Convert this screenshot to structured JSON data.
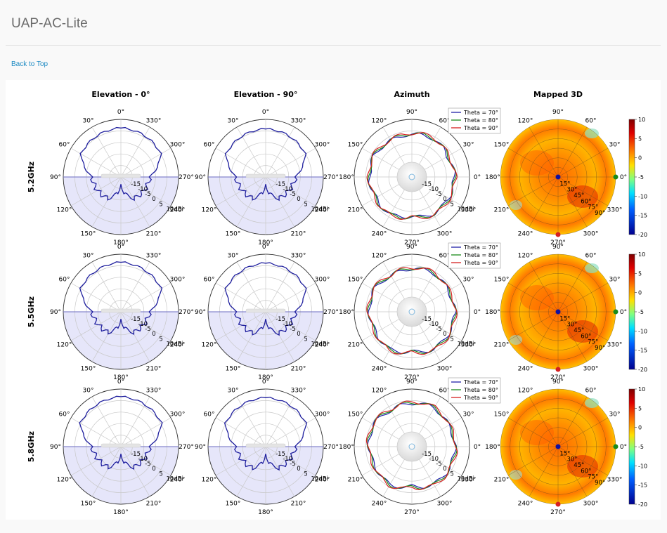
{
  "page": {
    "title": "UAP-AC-Lite",
    "back_to_top": "Back to Top"
  },
  "colors": {
    "pattern_line": "#1f1f9e",
    "lower_half_fill": "#e6e6fa",
    "link": "#1e8bc3"
  },
  "chart_data": {
    "type": "polar",
    "column_titles": [
      "Elevation - 0°",
      "Elevation - 90°",
      "Azimuth",
      "Mapped 3D"
    ],
    "row_labels": [
      "5.2GHz",
      "5.5GHz",
      "5.8GHz"
    ],
    "angle_tick_labels": [
      "0°",
      "330°",
      "300°",
      "270°",
      "240°",
      "210°",
      "180°",
      "150°",
      "120°",
      "90°",
      "60°",
      "30°"
    ],
    "radial_tick_labels": [
      "-15",
      "-10",
      "-5",
      "0",
      "5",
      "10dBi"
    ],
    "radial_range_dbi": [
      -20,
      10
    ],
    "elevation_angles_deg": [
      0,
      30,
      60,
      90,
      120,
      150,
      180,
      210,
      240,
      270,
      300,
      330
    ],
    "azimuth_angles_deg": [
      0,
      30,
      60,
      90,
      120,
      150,
      180,
      210,
      240,
      270,
      300,
      330
    ],
    "legend": [
      "Theta = 70°",
      "Theta = 80°",
      "Theta = 90°"
    ],
    "legend_colors": [
      "#1f1fa8",
      "#1a8a1a",
      "#d62020"
    ],
    "mapped_angle_labels": [
      "90°",
      "60°",
      "30°",
      "0°",
      "330°",
      "300°",
      "270°",
      "240°",
      "210°",
      "180°",
      "150°",
      "120°"
    ],
    "mapped_theta_labels": [
      "15°",
      "30°",
      "45°",
      "60°",
      "75°",
      "90°"
    ],
    "colorbar_ticks": [
      "10",
      "5",
      "0",
      "-5",
      "-10",
      "-15",
      "-20"
    ],
    "colorbar_range": [
      -20,
      10
    ],
    "rows": [
      {
        "freq": "5.2GHz",
        "elevation_0_dbi": [
          5.5,
          4.8,
          4.0,
          -5.0,
          -6.0,
          -7.0,
          -15.0,
          -7.0,
          -6.0,
          -5.0,
          4.0,
          4.8
        ],
        "elevation_90_dbi": [
          5.0,
          4.6,
          3.8,
          -4.5,
          -6.0,
          -7.0,
          -15.0,
          -7.0,
          -6.0,
          -4.5,
          3.8,
          4.6
        ],
        "azimuth_dbi": [
          [
            2.0,
            1.5,
            2.8,
            2.2,
            1.8,
            2.5,
            2.0,
            1.6,
            2.4,
            0.5,
            2.2,
            2.0
          ],
          [
            2.3,
            1.8,
            3.0,
            2.5,
            2.0,
            2.7,
            2.2,
            1.8,
            2.6,
            0.8,
            2.5,
            2.3
          ],
          [
            2.6,
            2.0,
            3.3,
            2.8,
            2.3,
            3.0,
            2.5,
            2.1,
            2.9,
            1.0,
            2.8,
            2.6
          ]
        ]
      },
      {
        "freq": "5.5GHz",
        "elevation_0_dbi": [
          5.8,
          5.0,
          4.2,
          -5.0,
          -6.5,
          -7.5,
          -15.0,
          -7.5,
          -6.5,
          -5.0,
          4.2,
          5.0
        ],
        "elevation_90_dbi": [
          5.3,
          4.8,
          4.0,
          -4.5,
          -6.0,
          -7.0,
          -15.0,
          -7.0,
          -6.0,
          -4.5,
          4.0,
          4.8
        ],
        "azimuth_dbi": [
          [
            2.2,
            1.8,
            3.0,
            2.4,
            1.6,
            2.8,
            2.0,
            1.5,
            2.6,
            0.6,
            2.4,
            2.2
          ],
          [
            2.5,
            2.0,
            3.2,
            2.7,
            1.9,
            3.0,
            2.3,
            1.8,
            2.9,
            0.9,
            2.7,
            2.5
          ],
          [
            2.8,
            2.3,
            3.5,
            3.0,
            2.2,
            3.3,
            2.6,
            2.1,
            3.2,
            1.2,
            3.0,
            2.8
          ]
        ]
      },
      {
        "freq": "5.8GHz",
        "elevation_0_dbi": [
          6.0,
          5.2,
          4.4,
          -5.0,
          -6.5,
          -7.5,
          -15.0,
          -7.5,
          -6.5,
          -5.0,
          4.4,
          5.2
        ],
        "elevation_90_dbi": [
          5.5,
          5.0,
          4.2,
          -4.5,
          -6.0,
          -7.0,
          -15.0,
          -7.0,
          -6.0,
          -4.5,
          4.2,
          5.0
        ],
        "azimuth_dbi": [
          [
            2.4,
            2.0,
            3.2,
            2.6,
            1.8,
            3.0,
            2.2,
            1.6,
            2.8,
            0.7,
            2.6,
            2.4
          ],
          [
            2.7,
            2.2,
            3.4,
            2.9,
            2.1,
            3.2,
            2.5,
            1.9,
            3.1,
            1.0,
            2.9,
            2.7
          ],
          [
            3.0,
            2.5,
            3.7,
            3.2,
            2.4,
            3.5,
            2.8,
            2.2,
            3.4,
            1.3,
            3.2,
            3.0
          ]
        ]
      }
    ]
  }
}
